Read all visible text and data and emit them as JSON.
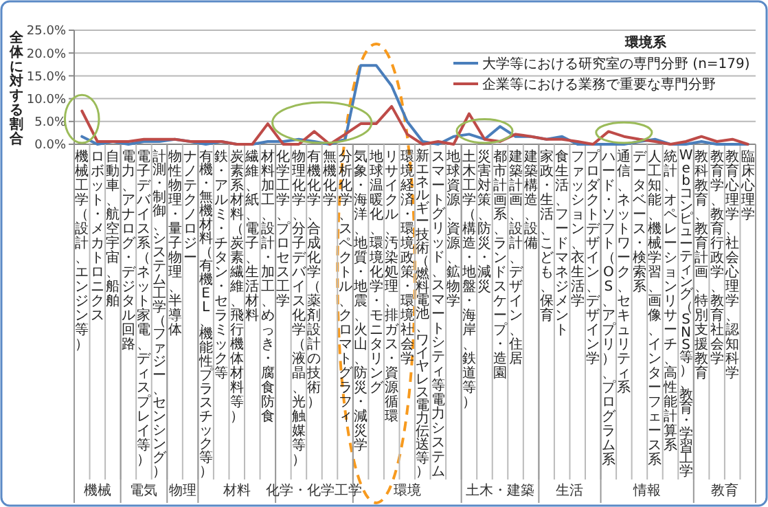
{
  "chart_data": {
    "type": "line",
    "title": "環境系",
    "ylabel": "全体に対する割合",
    "categories": [
      "機械工学（設計、エンジン等）",
      "ロボット・メカトロニクス",
      "自動車、航空宇宙、船舶",
      "電力、アナログ・デジタル回路",
      "電子デバイス系（ネット家電、ディスプレイ等）",
      "計測・制御、システム工学（ファジー、センシング）",
      "物性物理・量子物理、半導体",
      "ナノテクノロジー",
      "有機・無機材料（有機EL、機能性プラスチック等）",
      "鉄・アルミ・チタン・セラミック等",
      "炭素系材料（炭素繊維、飛行機体材料等）",
      "繊維、紙、電子、生活材料",
      "材料加工、設計・加工、めっき・腐食防食",
      "化学工学、プロセス工学",
      "物理化学、分子デバイス化学（液晶、光触媒等）",
      "有機化学、合成化学（薬剤設計の技術）",
      "無機化学",
      "分析化学、スペクトル、クロマトグラフィ",
      "気象・海洋、地質・地震、火山、防災・減災学",
      "地球温暖化、環境化学・モニタリング",
      "リサイクル、汚染処理、排ガス・資源循環",
      "環境経済・環境政策・環境社会学",
      "新エネルギー技術（燃料電池、ワイヤレス電力伝送等）",
      "スマートグリッド、スマートシティ等電力システム",
      "地球資源、資源、鉱物学",
      "土木工学（構造・地盤・海岸、鉄道等）",
      "災害対策、防災・減災",
      "都市計画系、ランドスケープ・造園",
      "建築計画、設計、デザイン、住居",
      "建築構造、設備",
      "家政・生活、こども、保育",
      "食生活、フードマネジメント",
      "ファッション、衣生活学",
      "プロダクトデザイン、デザイン学",
      "ハード・ソフト（OS、アプリ）、プログラム系",
      "通信、ネットワーク、セキュリティ系",
      "データベース・検索系",
      "人工知能、機械学習、画像、インターフェース系",
      "統計、オペレーションリサーチ、高性能計算系",
      "Webコンピューティング（SNS等）、教育・学習工学",
      "教科教育、教育計画、特別支援教育",
      "教育学、教育行政学、教育社会学",
      "教育心理学、社会心理学、認知科学",
      "臨床心理学"
    ],
    "series": [
      {
        "name": "大学等における研究室の専門分野 (n=179)",
        "color": "#4a7ebb",
        "values": [
          1.7,
          0,
          0.6,
          0,
          0.6,
          0.6,
          1.1,
          0.6,
          0,
          0.6,
          0,
          0,
          0.6,
          0.6,
          1.1,
          0.6,
          0,
          1.1,
          17.3,
          17.3,
          12.8,
          5.0,
          0.6,
          0,
          1.7,
          2.2,
          1.1,
          3.9,
          1.7,
          1.7,
          1.1,
          1.7,
          0,
          0,
          0,
          0,
          0.6,
          1.1,
          0,
          0,
          0.6,
          0,
          0,
          0
        ]
      },
      {
        "name": "企業等における業務で重要な専門分野",
        "color": "#be4b48",
        "values": [
          7.3,
          0.6,
          0.6,
          0.6,
          1.1,
          1.1,
          1.1,
          0.6,
          0.6,
          0.6,
          0,
          0,
          4.5,
          0,
          0,
          2.8,
          0,
          2.2,
          4.5,
          4.5,
          8.3,
          2.2,
          0,
          0.6,
          0,
          6.7,
          1.1,
          0.6,
          2.2,
          1.7,
          1.1,
          1.1,
          0.6,
          0,
          2.8,
          1.7,
          1.1,
          0.6,
          0,
          0.6,
          1.7,
          0.6,
          1.1,
          0
        ]
      }
    ],
    "ylim": [
      0,
      25
    ],
    "yticks": [
      {
        "value": 0,
        "label": "0.0%"
      },
      {
        "value": 5,
        "label": "5.0%"
      },
      {
        "value": 10,
        "label": "10.0%"
      },
      {
        "value": 15,
        "label": "15.0%"
      },
      {
        "value": 20,
        "label": "20.0%"
      },
      {
        "value": 25,
        "label": "25.0%"
      }
    ],
    "grid": "y",
    "legend": "top right",
    "marker": "none",
    "line_style": "solid",
    "annotations": [
      "機械",
      "電気",
      "物理",
      "材料",
      "化学・化学工学",
      "環境",
      "土木・建築",
      "生活",
      "情報",
      "教育"
    ]
  }
}
